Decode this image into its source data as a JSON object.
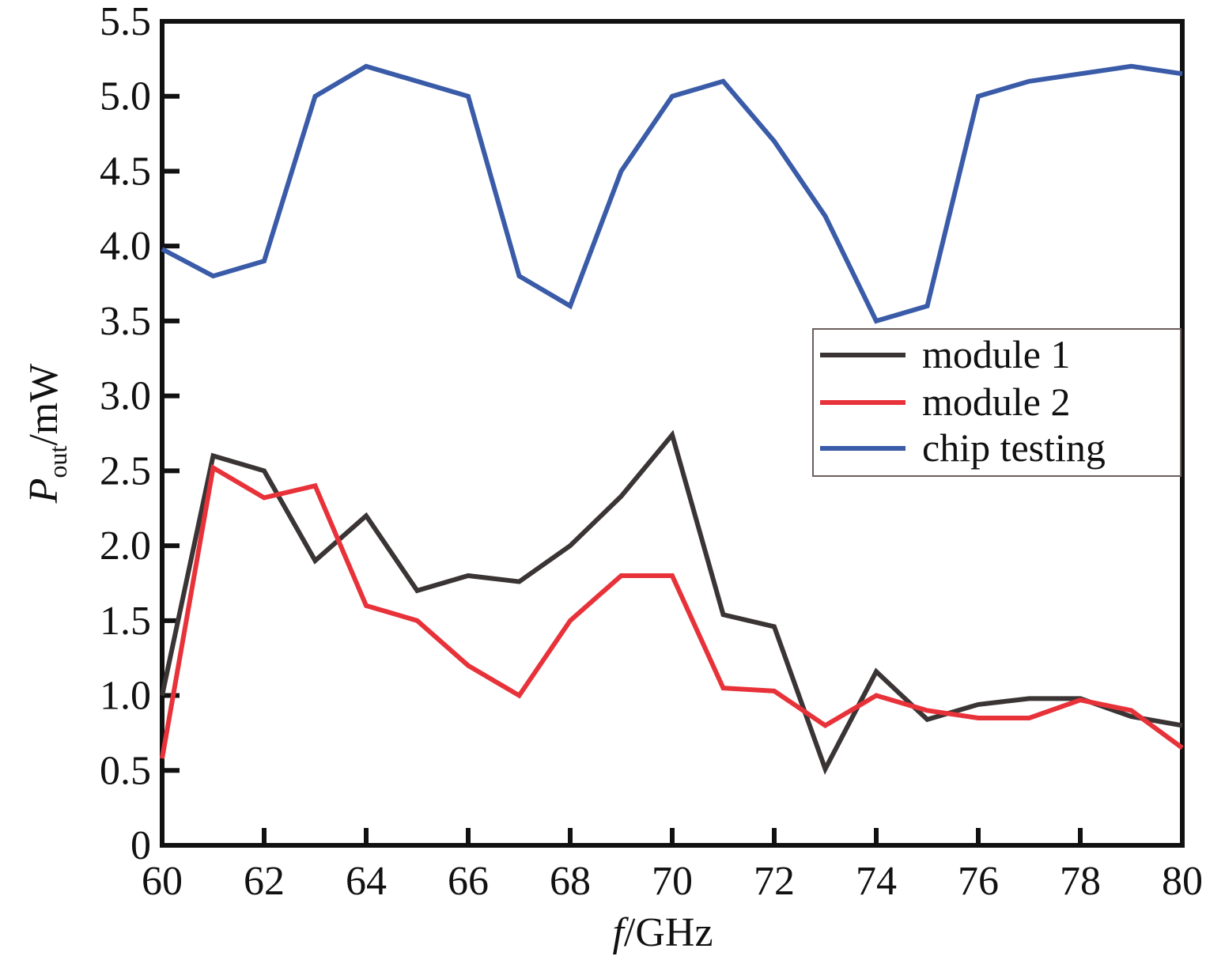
{
  "chart_data": {
    "type": "line",
    "x": [
      60,
      61,
      62,
      63,
      64,
      65,
      66,
      67,
      68,
      69,
      70,
      71,
      72,
      73,
      74,
      75,
      76,
      77,
      78,
      79,
      80
    ],
    "series": [
      {
        "name": "module 1",
        "color": "#3a3434",
        "values": [
          1.0,
          2.6,
          2.5,
          1.9,
          2.2,
          1.7,
          1.8,
          1.76,
          2.0,
          2.33,
          2.74,
          1.54,
          1.46,
          0.51,
          1.16,
          0.84,
          0.94,
          0.98,
          0.98,
          0.86,
          0.8
        ]
      },
      {
        "name": "module 2",
        "color": "#e8323a",
        "values": [
          0.58,
          2.52,
          2.32,
          2.4,
          1.6,
          1.5,
          1.2,
          1.0,
          1.5,
          1.8,
          1.8,
          1.05,
          1.03,
          0.8,
          1.0,
          0.9,
          0.85,
          0.85,
          0.97,
          0.9,
          0.65
        ]
      },
      {
        "name": "chip testing",
        "color": "#3a5ba8",
        "values": [
          3.98,
          3.8,
          3.9,
          5.0,
          5.2,
          5.1,
          5.0,
          3.8,
          3.6,
          4.5,
          5.0,
          5.1,
          4.7,
          4.2,
          3.5,
          3.6,
          5.0,
          5.1,
          5.15,
          5.2,
          5.15
        ]
      }
    ],
    "xlim": [
      60,
      80
    ],
    "ylim": [
      0,
      5.5
    ],
    "x_ticks": [
      "60",
      "62",
      "64",
      "66",
      "68",
      "70",
      "72",
      "74",
      "76",
      "78",
      "80"
    ],
    "y_ticks": [
      "0",
      "0.5",
      "1.0",
      "1.5",
      "2.0",
      "2.5",
      "3.0",
      "3.5",
      "4.0",
      "4.5",
      "5.0",
      "5.5"
    ],
    "xlabel": {
      "italic": "f",
      "rest": "/GHz"
    },
    "ylabel": {
      "italic": "P",
      "sub": "out",
      "rest": "/mW"
    },
    "legend_position": "right-middle",
    "grid": false
  }
}
